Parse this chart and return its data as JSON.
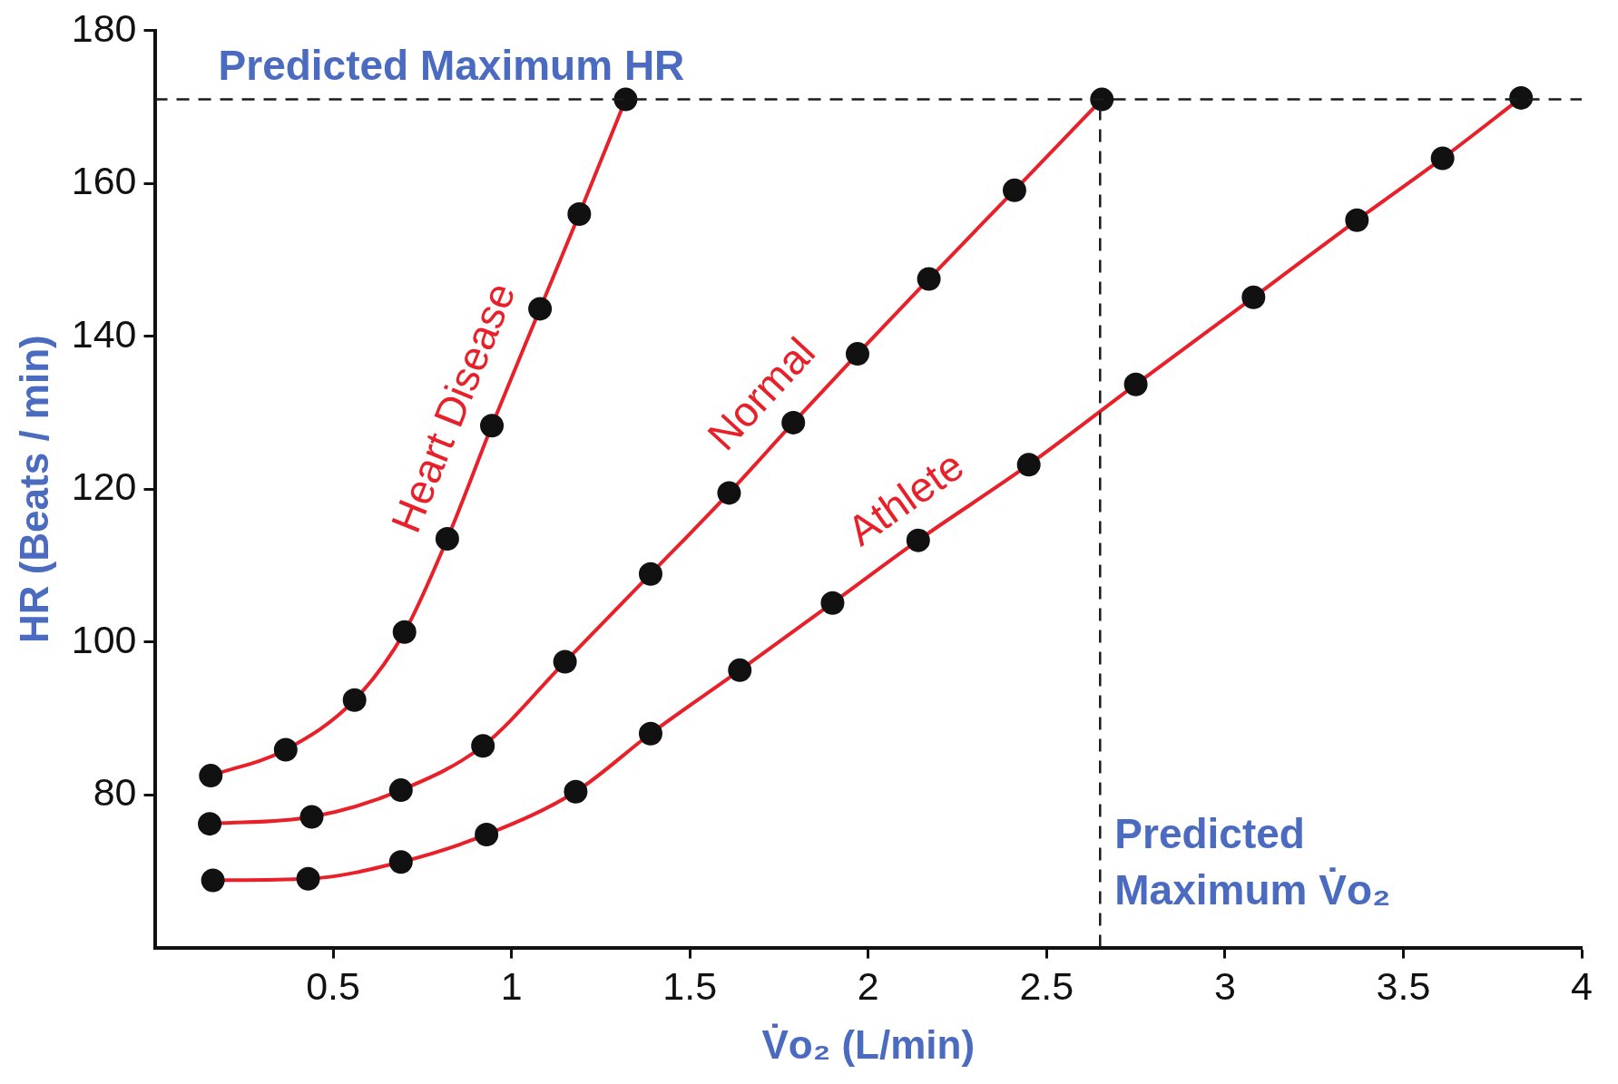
{
  "chart_data": {
    "type": "line",
    "xlabel": "V̇o₂ (L/min)",
    "ylabel": "HR (Beats / min)",
    "xlim": [
      0,
      4
    ],
    "xticks": [
      0.5,
      1,
      1.5,
      2,
      2.5,
      3,
      3.5,
      4
    ],
    "ylim": [
      60,
      180
    ],
    "yticks": [
      80,
      100,
      120,
      140,
      160,
      180
    ],
    "grid": false,
    "legend": false,
    "marker": "circle",
    "line_style": "solid",
    "series": [
      {
        "name": "Heart Disease",
        "color": "#e8202a",
        "x": [
          0.157,
          0.367,
          0.56,
          0.7,
          0.82,
          0.945,
          1.08,
          1.19,
          1.32
        ],
        "values": [
          82.5,
          85.9,
          92.4,
          101.3,
          113.5,
          128.3,
          143.6,
          156,
          171
        ]
      },
      {
        "name": "Normal",
        "color": "#e8202a",
        "x": [
          0.154,
          0.44,
          0.69,
          0.92,
          1.15,
          1.39,
          1.61,
          1.79,
          1.97,
          2.17,
          2.41,
          2.655
        ],
        "values": [
          76.2,
          77.1,
          80.6,
          86.4,
          97.4,
          108.9,
          119.5,
          128.7,
          137.7,
          147.5,
          159.1,
          171
        ]
      },
      {
        "name": "Athlete",
        "color": "#e8202a",
        "x": [
          0.163,
          0.43,
          0.69,
          0.93,
          1.18,
          1.39,
          1.64,
          1.9,
          2.14,
          2.45,
          2.75,
          3.08,
          3.37,
          3.61,
          3.83
        ],
        "values": [
          68.8,
          69,
          71.2,
          74.8,
          80.4,
          88,
          96.3,
          105.1,
          113.3,
          123.2,
          133.7,
          145.1,
          155.2,
          163.3,
          171.2
        ]
      }
    ],
    "ref_lines": [
      {
        "axis": "y",
        "value": 171,
        "label": "Predicted Maximum HR",
        "color": "#1a1a1a",
        "line_style": "dashed"
      },
      {
        "axis": "x",
        "value": 2.65,
        "label": "Predicted Maximum V̇o₂",
        "color": "#1a1a1a",
        "line_style": "dashed"
      }
    ]
  }
}
